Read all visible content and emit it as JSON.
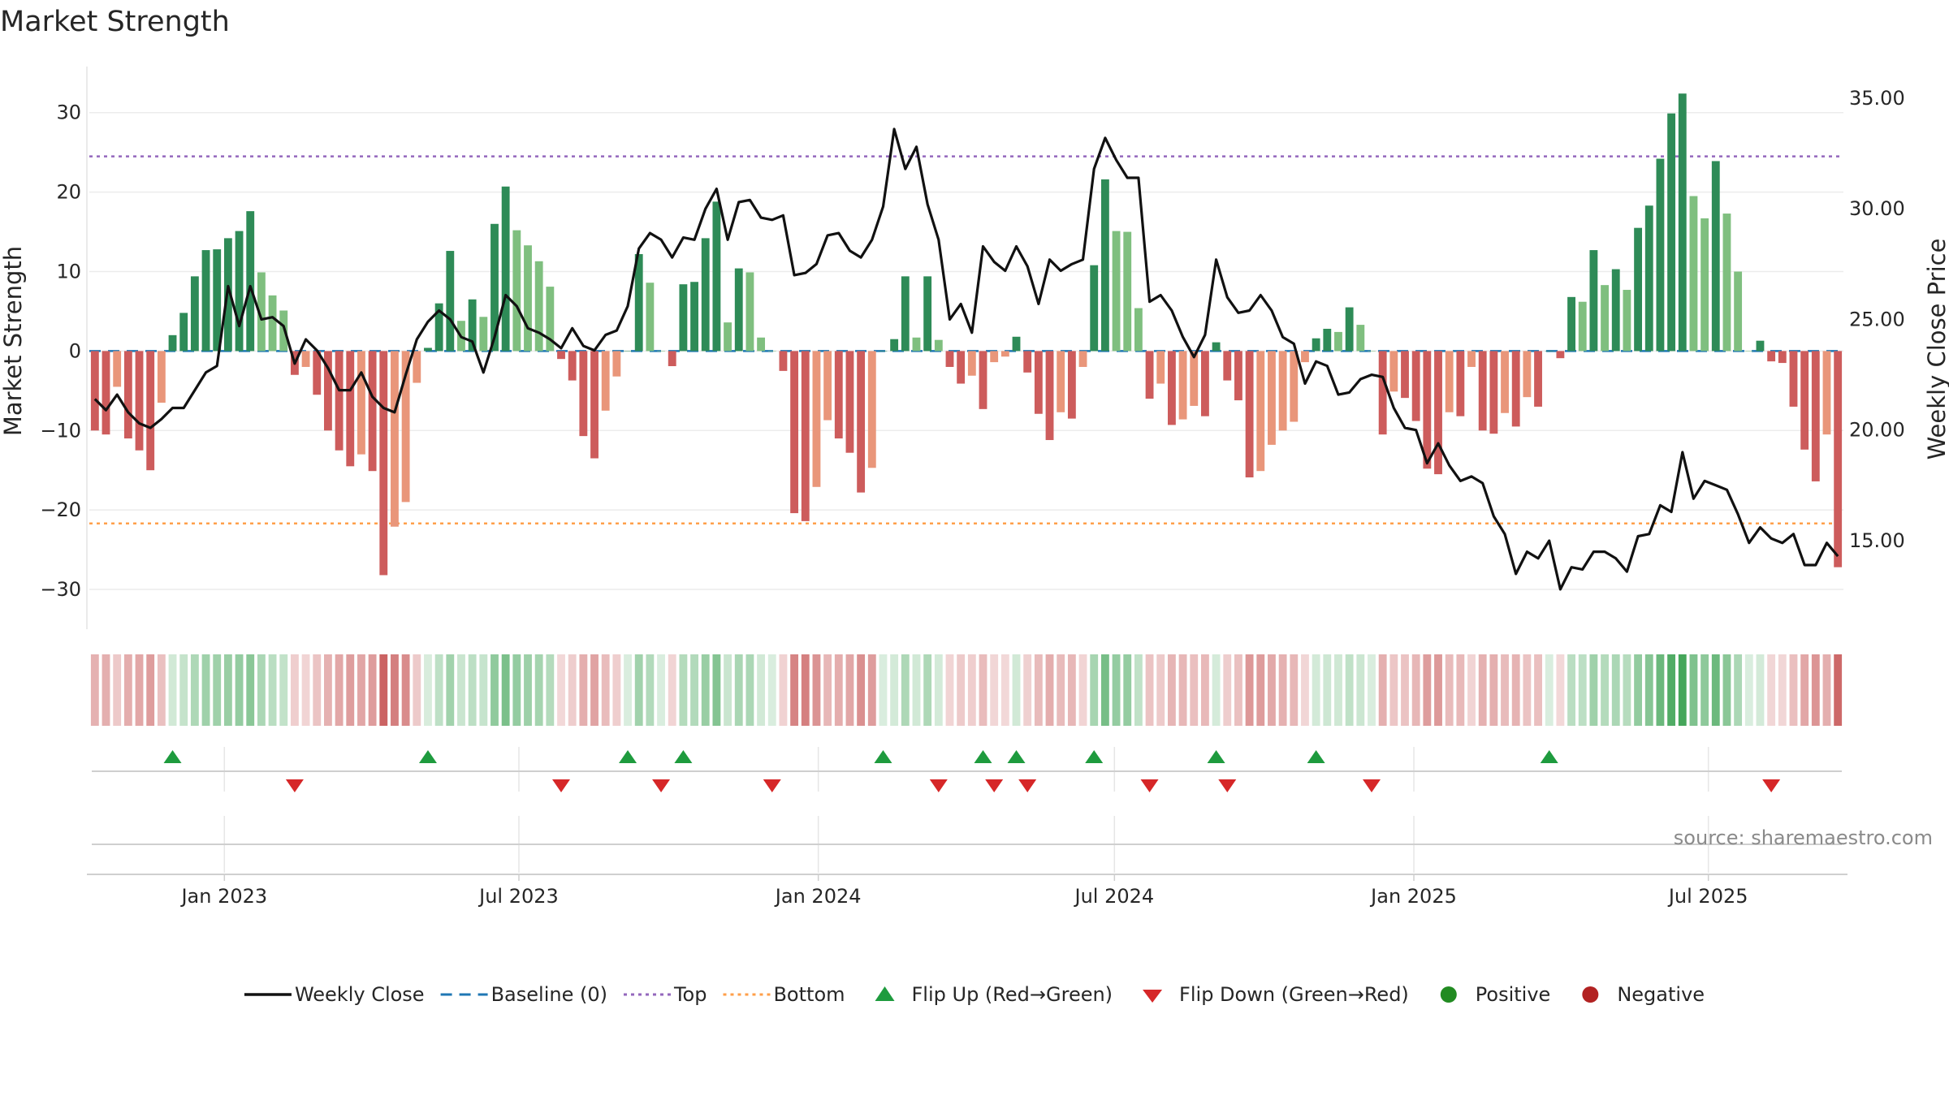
{
  "chart_data": {
    "type": "bar",
    "title": "Market Strength",
    "ylabel": "Market Strength",
    "ylabel_right": "Weekly Close Price",
    "ylim": [
      -35,
      36
    ],
    "ylim_right": [
      11,
      36.5
    ],
    "y_ticks": [
      30,
      20,
      10,
      0,
      -10,
      -20,
      -30
    ],
    "y_tick_labels": [
      "30",
      "20",
      "10",
      "0",
      "−10",
      "−20",
      "−30"
    ],
    "y_right_ticks": [
      35,
      30,
      25,
      20,
      15
    ],
    "y_right_tick_labels": [
      "35.00",
      "30.00",
      "25.00",
      "20.00",
      "15.00"
    ],
    "x_start": "2022-10-10",
    "x_end": "2025-09-22",
    "x_tick_dates": [
      "2023-01-01",
      "2023-07-01",
      "2024-01-01",
      "2024-07-01",
      "2025-01-01",
      "2025-07-01"
    ],
    "x_tick_labels": [
      "Jan 2023",
      "Jul 2023",
      "Jan 2024",
      "Jul 2024",
      "Jan 2025",
      "Jul 2025"
    ],
    "top_level": 24.5,
    "bottom_level": -21.7,
    "grid": true,
    "legend_position": "bottom",
    "colors": {
      "line": "#111111",
      "baseline": "#1f77b4",
      "top": "#9467bd",
      "bottom": "#ff9f4a",
      "up": "#1e9b3e",
      "down": "#d62728",
      "positive": "#228b22",
      "negative": "#b22222",
      "pos_strong": "#2e8b57",
      "pos_weak": "#7fbf7f",
      "neg_strong": "#cd5c5c",
      "neg_weak": "#e9967a"
    },
    "series": [
      {
        "name": "Market Strength",
        "values": [
          -10,
          -10.5,
          -4.5,
          -11,
          -12.5,
          -15,
          -6.5,
          2,
          4.8,
          9.4,
          12.7,
          12.8,
          14.2,
          15.1,
          17.6,
          9.9,
          7,
          5.1,
          -3,
          -2,
          -5.5,
          -10,
          -12.5,
          -14.5,
          -13,
          -15.1,
          -28.2,
          -22.1,
          -19,
          -4,
          0.4,
          6,
          12.6,
          3.8,
          6.5,
          4.3,
          16,
          20.7,
          15.2,
          13.3,
          11.3,
          8.1,
          -1,
          -3.7,
          -10.7,
          -13.5,
          -7.5,
          -3.2,
          0,
          12.2,
          8.6,
          0,
          -1.9,
          8.4,
          8.7,
          14.2,
          18.8,
          3.6,
          10.4,
          9.9,
          1.7,
          0,
          -2.5,
          -20.4,
          -21.4,
          -17.1,
          -8.7,
          -11,
          -12.8,
          -17.8,
          -14.7,
          0,
          1.5,
          9.4,
          1.7,
          9.4,
          1.4,
          -2,
          -4.1,
          -3.1,
          -7.3,
          -1.4,
          -0.7,
          1.8,
          -2.7,
          -7.9,
          -11.2,
          -7.7,
          -8.5,
          -2,
          10.8,
          21.6,
          15.1,
          15,
          5.4,
          -6,
          -4.1,
          -9.3,
          -8.6,
          -6.9,
          -8.2,
          1.1,
          -3.7,
          -6.2,
          -15.9,
          -15.1,
          -11.8,
          -10,
          -8.9,
          -1.4,
          1.6,
          2.8,
          2.4,
          5.5,
          3.3,
          0,
          -10.5,
          -5.1,
          -5.9,
          -8.8,
          -14.8,
          -15.5,
          -7.7,
          -8.2,
          -2,
          -10,
          -10.4,
          -7.8,
          -9.5,
          -5.8,
          -7,
          0,
          -0.9,
          6.8,
          6.2,
          12.7,
          8.3,
          10.3,
          7.7,
          15.5,
          18.3,
          24.2,
          29.9,
          32.4,
          19.5,
          16.7,
          23.9,
          17.3,
          10,
          0,
          1.3,
          -1.3,
          -1.5,
          -7,
          -12.4,
          -16.4,
          -10.5,
          -27.2
        ]
      },
      {
        "name": "Weekly Close",
        "values": [
          21.4,
          20.9,
          21.6,
          20.8,
          20.3,
          20.1,
          20.5,
          21,
          21,
          21.8,
          22.6,
          22.9,
          26.5,
          24.7,
          26.5,
          25,
          25.1,
          24.7,
          23,
          24.1,
          23.6,
          22.8,
          21.8,
          21.8,
          22.6,
          21.5,
          21,
          20.8,
          22.5,
          24.1,
          24.9,
          25.4,
          25,
          24.2,
          24,
          22.6,
          24.2,
          26.1,
          25.6,
          24.6,
          24.4,
          24.1,
          23.7,
          24.6,
          23.8,
          23.6,
          24.3,
          24.5,
          25.6,
          28.2,
          28.9,
          28.6,
          27.8,
          28.7,
          28.6,
          30,
          30.9,
          28.6,
          30.3,
          30.4,
          29.6,
          29.5,
          29.7,
          27,
          27.1,
          27.5,
          28.8,
          28.9,
          28.1,
          27.8,
          28.6,
          30.1,
          33.6,
          31.8,
          32.8,
          30.2,
          28.6,
          25,
          25.7,
          24.4,
          28.3,
          27.6,
          27.2,
          28.3,
          27.4,
          25.7,
          27.7,
          27.2,
          27.5,
          27.7,
          31.8,
          33.2,
          32.2,
          31.4,
          31.4,
          25.8,
          26.1,
          25.4,
          24.2,
          23.3,
          24.3,
          27.7,
          26,
          25.3,
          25.4,
          26.1,
          25.4,
          24.2,
          23.9,
          22.1,
          23.1,
          22.9,
          21.6,
          21.7,
          22.3,
          22.5,
          22.4,
          21,
          20.1,
          20,
          18.5,
          19.4,
          18.4,
          17.7,
          17.9,
          17.6,
          16.1,
          15.3,
          13.5,
          14.5,
          14.2,
          15,
          12.8,
          13.8,
          13.7,
          14.5,
          14.5,
          14.2,
          13.6,
          15.2,
          15.3,
          16.6,
          16.3,
          19,
          16.9,
          17.7,
          17.5,
          17.3,
          16.2,
          14.9,
          15.6,
          15.1,
          14.9,
          15.3,
          13.9,
          13.9,
          14.9,
          14.3
        ]
      }
    ],
    "flip_up_weeks": [
      7,
      30,
      48,
      53,
      71,
      80,
      83,
      90,
      101,
      110,
      131
    ],
    "flip_down_weeks": [
      18,
      42,
      51,
      61,
      76,
      81,
      84,
      95,
      102,
      115,
      151
    ]
  },
  "legend": [
    {
      "label": "Weekly Close",
      "symbol": "line"
    },
    {
      "label": "Baseline (0)",
      "symbol": "dash"
    },
    {
      "label": "Top",
      "symbol": "dot-top"
    },
    {
      "label": "Bottom",
      "symbol": "dot-bottom"
    },
    {
      "label": "Flip Up (Red→Green)",
      "symbol": "tri-up"
    },
    {
      "label": "Flip Down (Green→Red)",
      "symbol": "tri-down"
    },
    {
      "label": "Positive",
      "symbol": "circle-pos"
    },
    {
      "label": "Negative",
      "symbol": "circle-neg"
    }
  ],
  "source": "source: sharemaestro.com"
}
